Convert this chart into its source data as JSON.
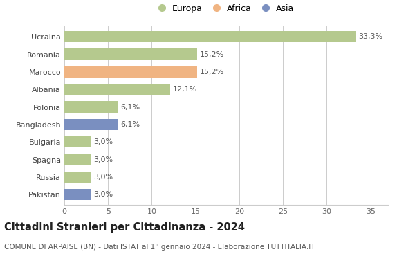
{
  "categories": [
    "Ucraina",
    "Romania",
    "Marocco",
    "Albania",
    "Polonia",
    "Bangladesh",
    "Bulgaria",
    "Spagna",
    "Russia",
    "Pakistan"
  ],
  "values": [
    33.3,
    15.2,
    15.2,
    12.1,
    6.1,
    6.1,
    3.0,
    3.0,
    3.0,
    3.0
  ],
  "labels": [
    "33,3%",
    "15,2%",
    "15,2%",
    "12,1%",
    "6,1%",
    "6,1%",
    "3,0%",
    "3,0%",
    "3,0%",
    "3,0%"
  ],
  "colors": [
    "#b5c98e",
    "#b5c98e",
    "#f0b482",
    "#b5c98e",
    "#b5c98e",
    "#7a8fc0",
    "#b5c98e",
    "#b5c98e",
    "#b5c98e",
    "#7a8fc0"
  ],
  "legend_labels": [
    "Europa",
    "Africa",
    "Asia"
  ],
  "legend_colors": [
    "#b5c98e",
    "#f0b482",
    "#7a8fc0"
  ],
  "title": "Cittadini Stranieri per Cittadinanza - 2024",
  "subtitle": "COMUNE DI ARPAISE (BN) - Dati ISTAT al 1° gennaio 2024 - Elaborazione TUTTITALIA.IT",
  "xlim": [
    0,
    37
  ],
  "xticks": [
    0,
    5,
    10,
    15,
    20,
    25,
    30,
    35
  ],
  "background_color": "#ffffff",
  "grid_color": "#cccccc",
  "bar_height": 0.65,
  "title_fontsize": 10.5,
  "subtitle_fontsize": 7.5,
  "tick_fontsize": 8,
  "label_fontsize": 8,
  "legend_fontsize": 9
}
